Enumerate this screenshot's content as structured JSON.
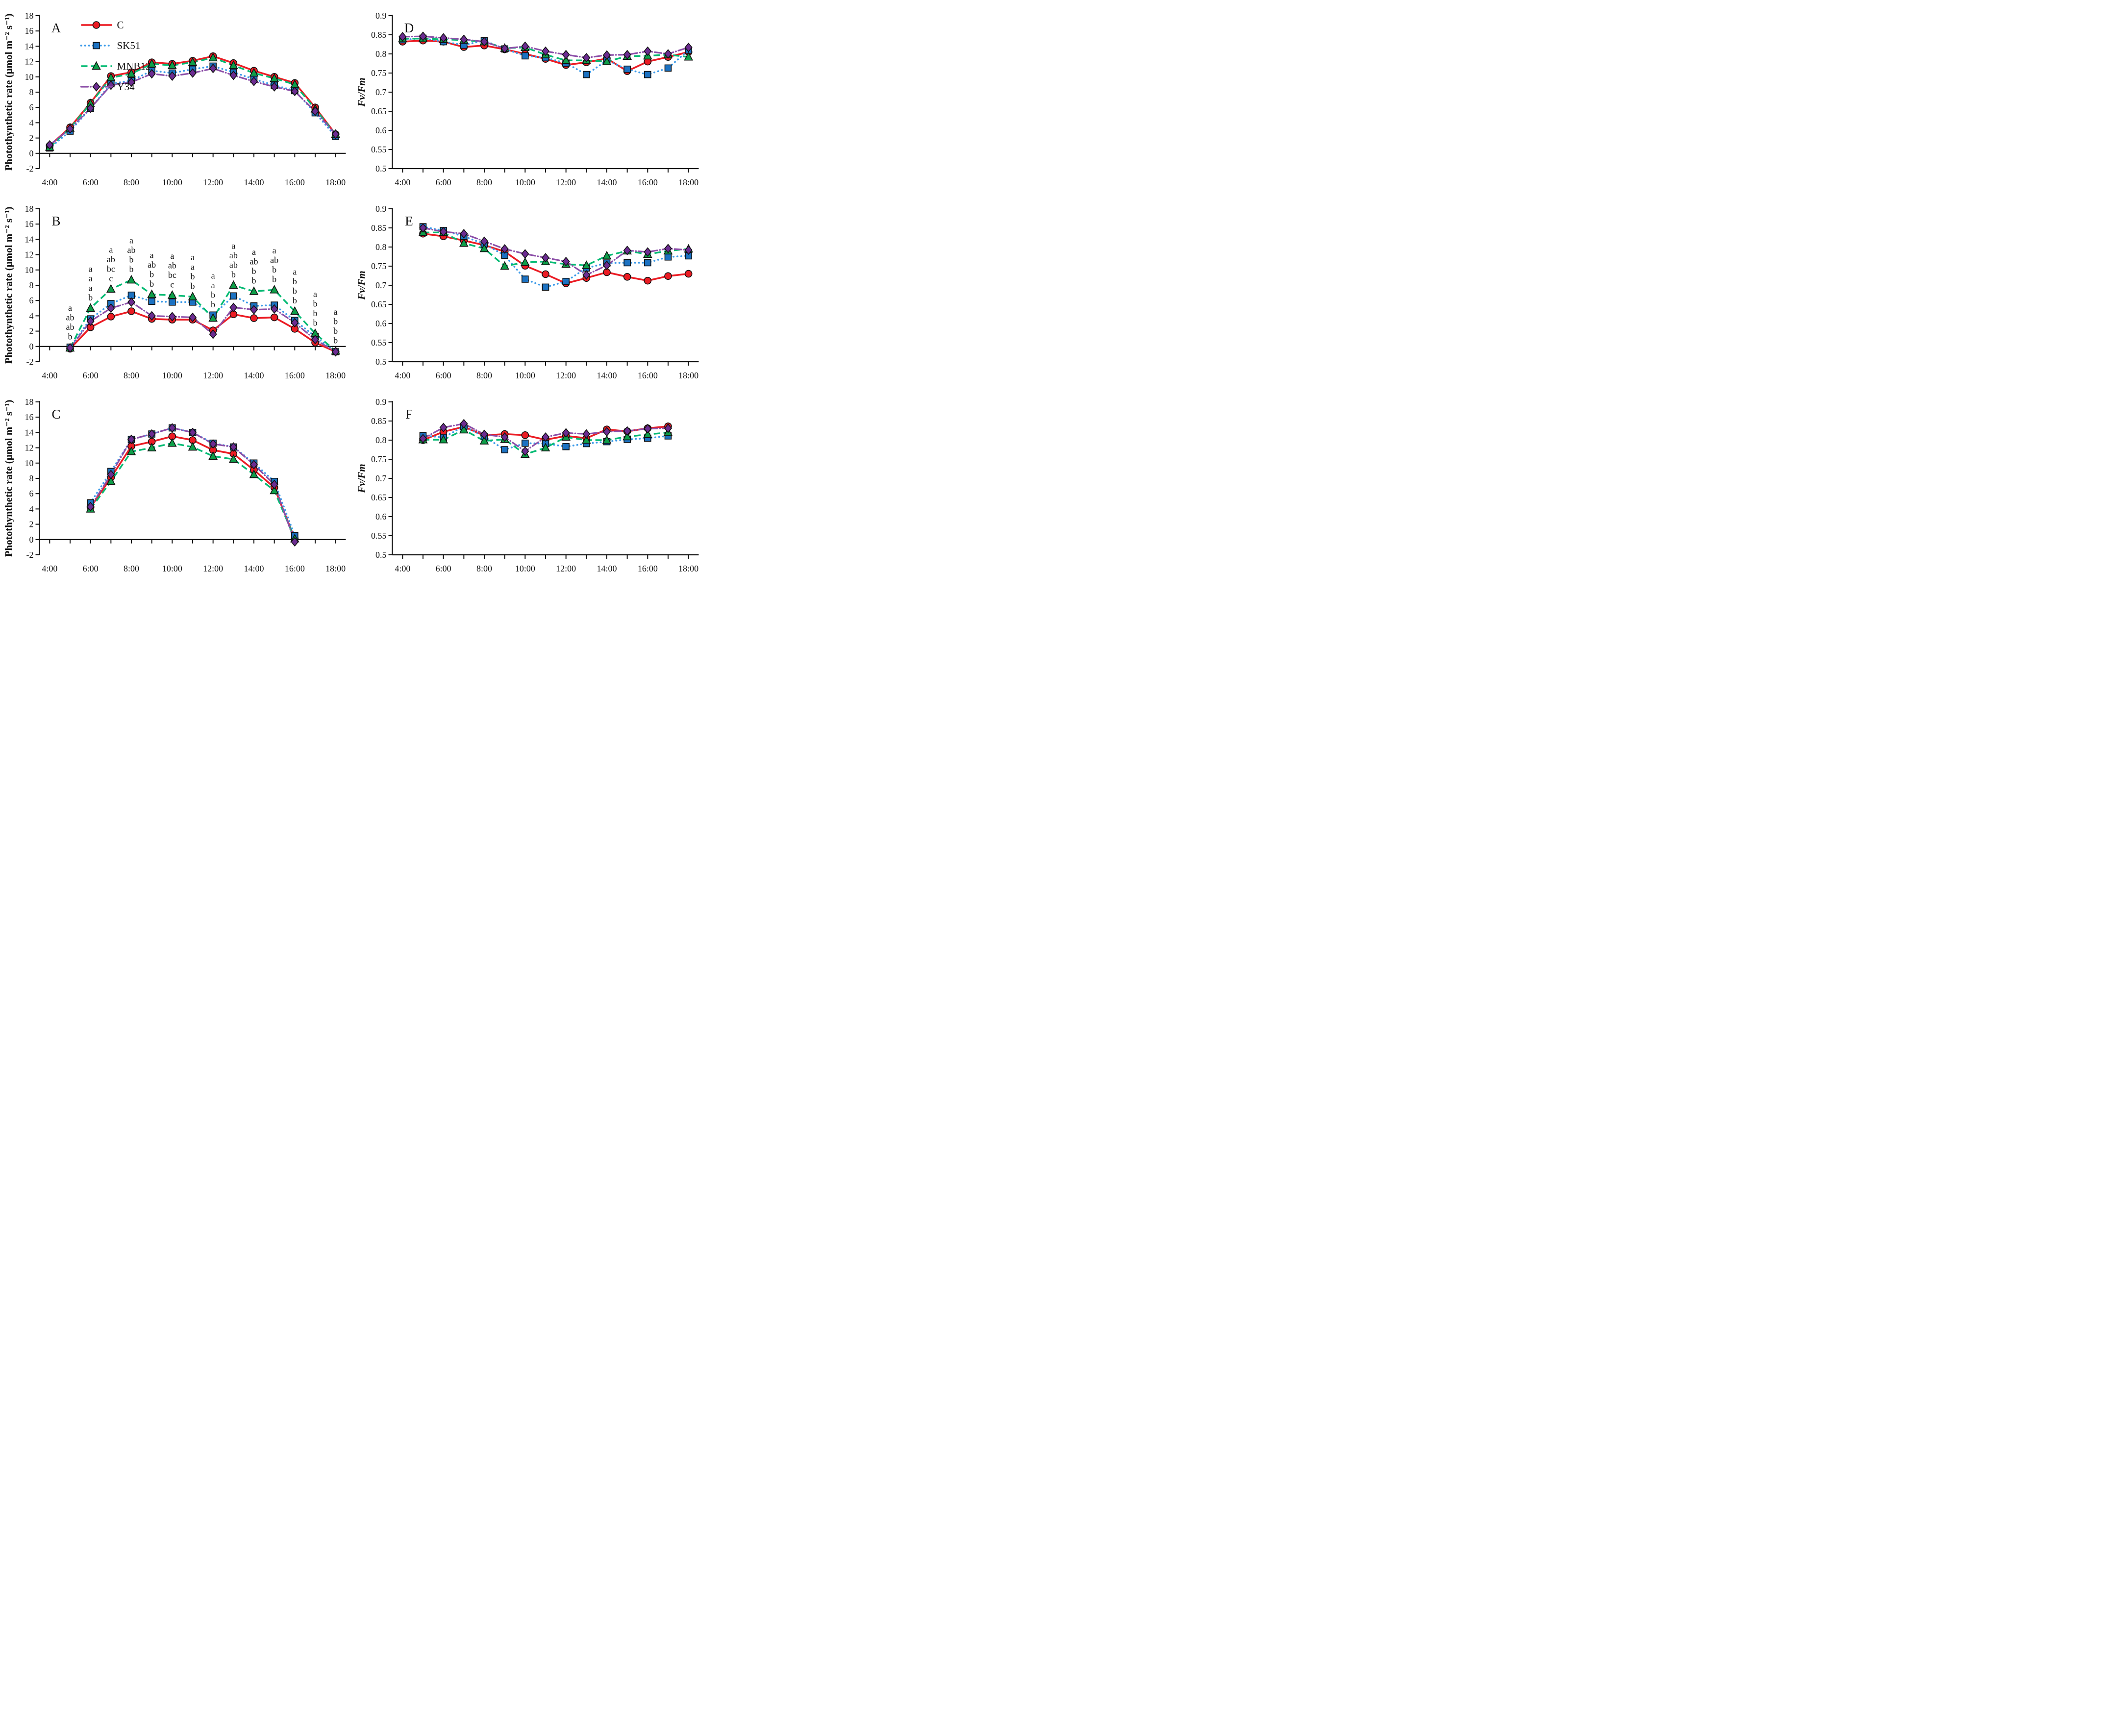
{
  "figure": {
    "legend": [
      {
        "label": "C",
        "marker": "circle",
        "line": "solid",
        "line_color": "#EB1C24",
        "marker_color": "#EB1C24"
      },
      {
        "label": "SK51",
        "marker": "square",
        "line": "dotted",
        "line_color": "#3D9BE9",
        "marker_color": "#1C72C2"
      },
      {
        "label": "MNB12",
        "marker": "triangle",
        "line": "dashed",
        "line_color": "#04BA73",
        "marker_color": "#0E9F49"
      },
      {
        "label": "Y34",
        "marker": "diamond",
        "line": "dashdot",
        "line_color": "#8C4FA8",
        "marker_color": "#6C2C91"
      }
    ]
  },
  "chart_data": [
    {
      "id": "A",
      "type": "line",
      "panel_label": "A",
      "ylabel": "Photothynthetic rate (μmol m⁻² s⁻¹)",
      "ylabel_italic": false,
      "ylim": [
        -2,
        18
      ],
      "ytick_step": 2,
      "x_axis_at": 0,
      "show_legend": true,
      "xtick_labels": [
        "4:00",
        "6:00",
        "8:00",
        "10:00",
        "12:00",
        "14:00",
        "16:00",
        "18:00"
      ],
      "series": [
        {
          "name": "C",
          "x": [
            4,
            5,
            6,
            7,
            8,
            9,
            10,
            11,
            12,
            13,
            14,
            15,
            16,
            17,
            18
          ],
          "y": [
            1.0,
            3.4,
            6.6,
            10.1,
            10.6,
            11.9,
            11.7,
            12.1,
            12.7,
            11.8,
            10.8,
            10.0,
            9.2,
            6.0,
            2.5
          ]
        },
        {
          "name": "SK51",
          "x": [
            4,
            5,
            6,
            7,
            8,
            9,
            10,
            11,
            12,
            13,
            14,
            15,
            16,
            17,
            18
          ],
          "y": [
            0.7,
            2.9,
            5.9,
            9.1,
            9.5,
            10.8,
            10.5,
            11.0,
            11.4,
            10.6,
            9.7,
            8.9,
            8.2,
            5.3,
            2.2
          ]
        },
        {
          "name": "MNB12",
          "x": [
            4,
            5,
            6,
            7,
            8,
            9,
            10,
            11,
            12,
            13,
            14,
            15,
            16,
            17,
            18
          ],
          "y": [
            0.8,
            3.3,
            6.5,
            9.9,
            10.4,
            11.7,
            11.5,
            11.9,
            12.5,
            11.5,
            10.5,
            9.8,
            9.0,
            5.8,
            2.5
          ]
        },
        {
          "name": "Y34",
          "x": [
            4,
            5,
            6,
            7,
            8,
            9,
            10,
            11,
            12,
            13,
            14,
            15,
            16,
            17,
            18
          ],
          "y": [
            1.1,
            3.2,
            5.9,
            8.9,
            9.3,
            10.4,
            10.1,
            10.5,
            11.1,
            10.2,
            9.4,
            8.7,
            8.1,
            5.5,
            2.5
          ]
        }
      ]
    },
    {
      "id": "B",
      "type": "line",
      "panel_label": "B",
      "ylabel": "Photothynthetic rate (μmol m⁻² s⁻¹)",
      "ylabel_italic": false,
      "ylim": [
        -2,
        18
      ],
      "ytick_step": 2,
      "x_axis_at": 0,
      "show_legend": false,
      "xtick_labels": [
        "4:00",
        "6:00",
        "8:00",
        "10:00",
        "12:00",
        "14:00",
        "16:00",
        "18:00"
      ],
      "series": [
        {
          "name": "C",
          "x": [
            5,
            6,
            7,
            8,
            9,
            10,
            11,
            12,
            13,
            14,
            15,
            16,
            17,
            18
          ],
          "y": [
            -0.3,
            2.5,
            3.9,
            4.6,
            3.6,
            3.5,
            3.5,
            2.1,
            4.2,
            3.7,
            3.8,
            2.3,
            0.5,
            -0.7
          ]
        },
        {
          "name": "SK51",
          "x": [
            5,
            6,
            7,
            8,
            9,
            10,
            11,
            12,
            13,
            14,
            15,
            16,
            17,
            18
          ],
          "y": [
            -0.1,
            3.6,
            5.6,
            6.7,
            5.9,
            5.8,
            5.8,
            4.1,
            6.6,
            5.3,
            5.4,
            3.4,
            1.3,
            -0.7
          ]
        },
        {
          "name": "MNB12",
          "x": [
            5,
            6,
            7,
            8,
            9,
            10,
            11,
            12,
            13,
            14,
            15,
            16,
            17,
            18
          ],
          "y": [
            -0.2,
            5.0,
            7.5,
            8.7,
            6.8,
            6.7,
            6.5,
            3.7,
            8.0,
            7.2,
            7.4,
            4.6,
            1.7,
            -0.6
          ]
        },
        {
          "name": "Y34",
          "x": [
            5,
            6,
            7,
            8,
            9,
            10,
            11,
            12,
            13,
            14,
            15,
            16,
            17,
            18
          ],
          "y": [
            -0.2,
            3.3,
            5.0,
            5.8,
            4.0,
            3.9,
            3.8,
            1.6,
            5.1,
            4.8,
            4.9,
            3.1,
            0.9,
            -0.7
          ]
        }
      ],
      "sig_letters": [
        {
          "x": 5,
          "stack": [
            "a",
            "ab",
            "ab",
            "b"
          ]
        },
        {
          "x": 6,
          "stack": [
            "a",
            "a",
            "a",
            "b"
          ]
        },
        {
          "x": 7,
          "stack": [
            "a",
            "ab",
            "bc",
            "c"
          ]
        },
        {
          "x": 8,
          "stack": [
            "a",
            "ab",
            "b",
            "b"
          ]
        },
        {
          "x": 9,
          "stack": [
            "a",
            "ab",
            "b",
            "b"
          ]
        },
        {
          "x": 10,
          "stack": [
            "a",
            "ab",
            "bc",
            "c"
          ]
        },
        {
          "x": 11,
          "stack": [
            "a",
            "a",
            "b",
            "b"
          ]
        },
        {
          "x": 12,
          "stack": [
            "a",
            "a",
            "b",
            "b"
          ]
        },
        {
          "x": 13,
          "stack": [
            "a",
            "ab",
            "ab",
            "b"
          ]
        },
        {
          "x": 14,
          "stack": [
            "a",
            "ab",
            "b",
            "b"
          ]
        },
        {
          "x": 15,
          "stack": [
            "a",
            "ab",
            "b",
            "b"
          ]
        },
        {
          "x": 16,
          "stack": [
            "a",
            "b",
            "b",
            "b"
          ]
        },
        {
          "x": 17,
          "stack": [
            "a",
            "b",
            "b",
            "b"
          ]
        },
        {
          "x": 18,
          "stack": [
            "a",
            "b",
            "b",
            "b"
          ]
        }
      ]
    },
    {
      "id": "C",
      "type": "line",
      "panel_label": "C",
      "ylabel": "Photothynthetic rate (μmol m⁻² s⁻¹)",
      "ylabel_italic": false,
      "ylim": [
        -2,
        18
      ],
      "ytick_step": 2,
      "x_axis_at": 0,
      "show_legend": false,
      "xtick_labels": [
        "4:00",
        "6:00",
        "8:00",
        "10:00",
        "12:00",
        "14:00",
        "16:00",
        "18:00"
      ],
      "series": [
        {
          "name": "C",
          "x": [
            6,
            7,
            8,
            9,
            10,
            11,
            12,
            13,
            14,
            15,
            16
          ],
          "y": [
            4.2,
            8.1,
            12.2,
            12.8,
            13.5,
            13.0,
            11.7,
            11.2,
            9.1,
            6.8,
            0.1
          ]
        },
        {
          "name": "SK51",
          "x": [
            6,
            7,
            8,
            9,
            10,
            11,
            12,
            13,
            14,
            15,
            16
          ],
          "y": [
            4.8,
            8.9,
            13.1,
            13.8,
            14.6,
            14.0,
            12.6,
            12.1,
            10.0,
            7.6,
            0.5
          ]
        },
        {
          "name": "MNB12",
          "x": [
            6,
            7,
            8,
            9,
            10,
            11,
            12,
            13,
            14,
            15,
            16
          ],
          "y": [
            4.0,
            7.6,
            11.5,
            12.0,
            12.6,
            12.1,
            10.9,
            10.5,
            8.5,
            6.4,
            0.1
          ]
        },
        {
          "name": "Y34",
          "x": [
            6,
            7,
            8,
            9,
            10,
            11,
            12,
            13,
            14,
            15,
            16
          ],
          "y": [
            4.3,
            8.5,
            13.1,
            13.8,
            14.6,
            14.0,
            12.5,
            12.1,
            9.8,
            7.2,
            -0.3
          ]
        }
      ]
    },
    {
      "id": "D",
      "type": "line",
      "panel_label": "D",
      "ylabel": "Fv/Fm",
      "ylabel_italic": true,
      "ylim": [
        0.5,
        0.9
      ],
      "ytick_step": 0.05,
      "x_axis_at": 0.5,
      "show_legend": false,
      "xtick_labels": [
        "4:00",
        "6:00",
        "8:00",
        "10:00",
        "12:00",
        "14:00",
        "16:00",
        "18:00"
      ],
      "series": [
        {
          "name": "C",
          "x": [
            4,
            5,
            6,
            7,
            8,
            9,
            10,
            11,
            12,
            13,
            14,
            15,
            16,
            17,
            18
          ],
          "y": [
            0.832,
            0.835,
            0.832,
            0.818,
            0.822,
            0.812,
            0.8,
            0.787,
            0.771,
            0.778,
            0.788,
            0.755,
            0.78,
            0.792,
            0.805
          ]
        },
        {
          "name": "SK51",
          "x": [
            4,
            5,
            6,
            7,
            8,
            9,
            10,
            11,
            12,
            13,
            14,
            15,
            16,
            17,
            18
          ],
          "y": [
            0.837,
            0.841,
            0.832,
            0.823,
            0.835,
            0.813,
            0.795,
            0.79,
            0.776,
            0.746,
            0.783,
            0.76,
            0.746,
            0.763,
            0.81
          ]
        },
        {
          "name": "MNB12",
          "x": [
            4,
            5,
            6,
            7,
            8,
            9,
            10,
            11,
            12,
            13,
            14,
            15,
            16,
            17,
            18
          ],
          "y": [
            0.84,
            0.84,
            0.838,
            0.836,
            0.832,
            0.815,
            0.817,
            0.798,
            0.783,
            0.783,
            0.78,
            0.794,
            0.795,
            0.798,
            0.792
          ]
        },
        {
          "name": "Y34",
          "x": [
            4,
            5,
            6,
            7,
            8,
            9,
            10,
            11,
            12,
            13,
            14,
            15,
            16,
            17,
            18
          ],
          "y": [
            0.845,
            0.846,
            0.842,
            0.838,
            0.832,
            0.814,
            0.82,
            0.807,
            0.798,
            0.79,
            0.797,
            0.798,
            0.807,
            0.8,
            0.817
          ]
        }
      ]
    },
    {
      "id": "E",
      "type": "line",
      "panel_label": "E",
      "ylabel": "Fv/Fm",
      "ylabel_italic": true,
      "ylim": [
        0.5,
        0.9
      ],
      "ytick_step": 0.05,
      "x_axis_at": 0.5,
      "show_legend": false,
      "xtick_labels": [
        "4:00",
        "6:00",
        "8:00",
        "10:00",
        "12:00",
        "14:00",
        "16:00",
        "18:00"
      ],
      "series": [
        {
          "name": "C",
          "x": [
            5,
            6,
            7,
            8,
            9,
            10,
            11,
            12,
            13,
            14,
            15,
            16,
            17,
            18
          ],
          "y": [
            0.835,
            0.828,
            0.817,
            0.805,
            0.788,
            0.751,
            0.729,
            0.705,
            0.719,
            0.734,
            0.722,
            0.712,
            0.724,
            0.73
          ]
        },
        {
          "name": "SK51",
          "x": [
            5,
            6,
            7,
            8,
            9,
            10,
            11,
            12,
            13,
            14,
            15,
            16,
            17,
            18
          ],
          "y": [
            0.853,
            0.843,
            0.828,
            0.808,
            0.778,
            0.716,
            0.695,
            0.71,
            0.745,
            0.758,
            0.759,
            0.759,
            0.774,
            0.777
          ]
        },
        {
          "name": "MNB12",
          "x": [
            5,
            6,
            7,
            8,
            9,
            10,
            11,
            12,
            13,
            14,
            15,
            16,
            17,
            18
          ],
          "y": [
            0.838,
            0.838,
            0.81,
            0.796,
            0.75,
            0.76,
            0.762,
            0.755,
            0.752,
            0.777,
            0.79,
            0.781,
            0.79,
            0.795
          ]
        },
        {
          "name": "Y34",
          "x": [
            5,
            6,
            7,
            8,
            9,
            10,
            11,
            12,
            13,
            14,
            15,
            16,
            17,
            18
          ],
          "y": [
            0.85,
            0.84,
            0.835,
            0.815,
            0.795,
            0.782,
            0.772,
            0.762,
            0.727,
            0.752,
            0.791,
            0.787,
            0.796,
            0.792
          ]
        }
      ]
    },
    {
      "id": "F",
      "type": "line",
      "panel_label": "F",
      "ylabel": "Fv/Fm",
      "ylabel_italic": true,
      "ylim": [
        0.5,
        0.9
      ],
      "ytick_step": 0.05,
      "x_axis_at": 0.5,
      "show_legend": false,
      "xtick_labels": [
        "4:00",
        "6:00",
        "8:00",
        "10:00",
        "12:00",
        "14:00",
        "16:00",
        "18:00"
      ],
      "series": [
        {
          "name": "C",
          "x": [
            5,
            6,
            7,
            8,
            9,
            10,
            11,
            12,
            13,
            14,
            15,
            16,
            17
          ],
          "y": [
            0.8,
            0.822,
            0.835,
            0.812,
            0.816,
            0.813,
            0.801,
            0.811,
            0.805,
            0.828,
            0.823,
            0.831,
            0.836
          ]
        },
        {
          "name": "SK51",
          "x": [
            5,
            6,
            7,
            8,
            9,
            10,
            11,
            12,
            13,
            14,
            15,
            16,
            17
          ],
          "y": [
            0.812,
            0.807,
            0.836,
            0.809,
            0.775,
            0.792,
            0.791,
            0.783,
            0.791,
            0.796,
            0.802,
            0.805,
            0.811
          ]
        },
        {
          "name": "MNB12",
          "x": [
            5,
            6,
            7,
            8,
            9,
            10,
            11,
            12,
            13,
            14,
            15,
            16,
            17
          ],
          "y": [
            0.801,
            0.801,
            0.827,
            0.798,
            0.802,
            0.763,
            0.78,
            0.808,
            0.8,
            0.8,
            0.809,
            0.815,
            0.82
          ]
        },
        {
          "name": "Y34",
          "x": [
            5,
            6,
            7,
            8,
            9,
            10,
            11,
            12,
            13,
            14,
            15,
            16,
            17
          ],
          "y": [
            0.804,
            0.833,
            0.843,
            0.815,
            0.808,
            0.771,
            0.808,
            0.819,
            0.816,
            0.822,
            0.824,
            0.83,
            0.831
          ]
        }
      ]
    }
  ]
}
